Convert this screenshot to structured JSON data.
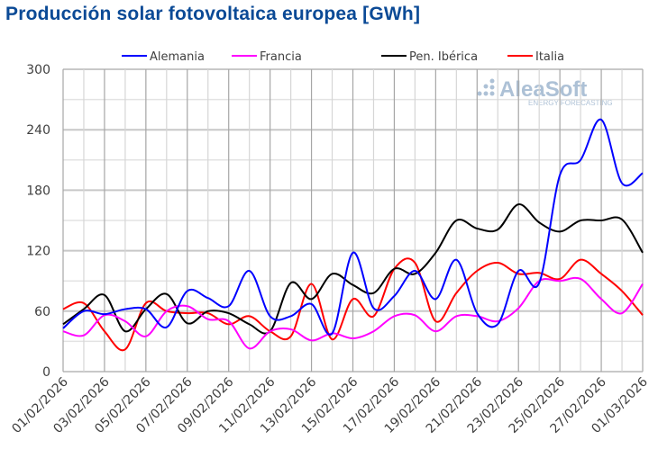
{
  "chart_data": {
    "type": "line",
    "title": "Producción solar fotovoltaica europea [GWh]",
    "xlabel": "",
    "ylabel": "",
    "ylim": [
      0,
      300
    ],
    "yticks": [
      0,
      60,
      120,
      180,
      240,
      300
    ],
    "grid": true,
    "legend": "top",
    "x": [
      "01/02/2026",
      "02/02/2026",
      "03/02/2026",
      "04/02/2026",
      "05/02/2026",
      "06/02/2026",
      "07/02/2026",
      "08/02/2026",
      "09/02/2026",
      "10/02/2026",
      "11/02/2026",
      "12/02/2026",
      "13/02/2026",
      "14/02/2026",
      "15/02/2026",
      "16/02/2026",
      "17/02/2026",
      "18/02/2026",
      "19/02/2026",
      "20/02/2026",
      "21/02/2026",
      "22/02/2026",
      "23/02/2026",
      "24/02/2026",
      "25/02/2026",
      "26/02/2026",
      "27/02/2026",
      "28/02/2026",
      "01/03/2026"
    ],
    "xtick_labels": [
      "01/02/2026",
      "03/02/2026",
      "05/02/2026",
      "07/02/2026",
      "09/02/2026",
      "11/02/2026",
      "13/02/2026",
      "15/02/2026",
      "17/02/2026",
      "19/02/2026",
      "21/02/2026",
      "23/02/2026",
      "25/02/2026",
      "27/02/2026",
      "01/03/2026"
    ],
    "series": [
      {
        "name": "Alemania",
        "color": "#0000ff",
        "values": [
          43,
          60,
          57,
          62,
          62,
          44,
          80,
          73,
          65,
          100,
          55,
          55,
          67,
          38,
          118,
          63,
          75,
          100,
          72,
          111,
          58,
          47,
          100,
          88,
          195,
          210,
          250,
          187,
          197
        ]
      },
      {
        "name": "Francia",
        "color": "#ff00ff",
        "values": [
          40,
          36,
          56,
          50,
          35,
          60,
          65,
          52,
          50,
          23,
          40,
          42,
          31,
          38,
          33,
          40,
          55,
          56,
          40,
          55,
          55,
          50,
          63,
          90,
          90,
          92,
          72,
          58,
          87
        ]
      },
      {
        "name": "Pen. Ibérica",
        "color": "#000000",
        "values": [
          47,
          62,
          76,
          40,
          62,
          77,
          48,
          60,
          58,
          47,
          40,
          88,
          72,
          97,
          86,
          78,
          102,
          97,
          118,
          150,
          142,
          141,
          166,
          148,
          139,
          150,
          150,
          151,
          118
        ]
      },
      {
        "name": "Italia",
        "color": "#ff0000",
        "values": [
          62,
          68,
          40,
          22,
          68,
          60,
          58,
          58,
          47,
          55,
          40,
          35,
          87,
          32,
          72,
          55,
          102,
          108,
          50,
          78,
          100,
          108,
          97,
          98,
          92,
          111,
          97,
          80,
          56
        ]
      }
    ]
  },
  "logo": {
    "name": "AleaSoft",
    "tagline": "ENERGY FORECASTING"
  }
}
